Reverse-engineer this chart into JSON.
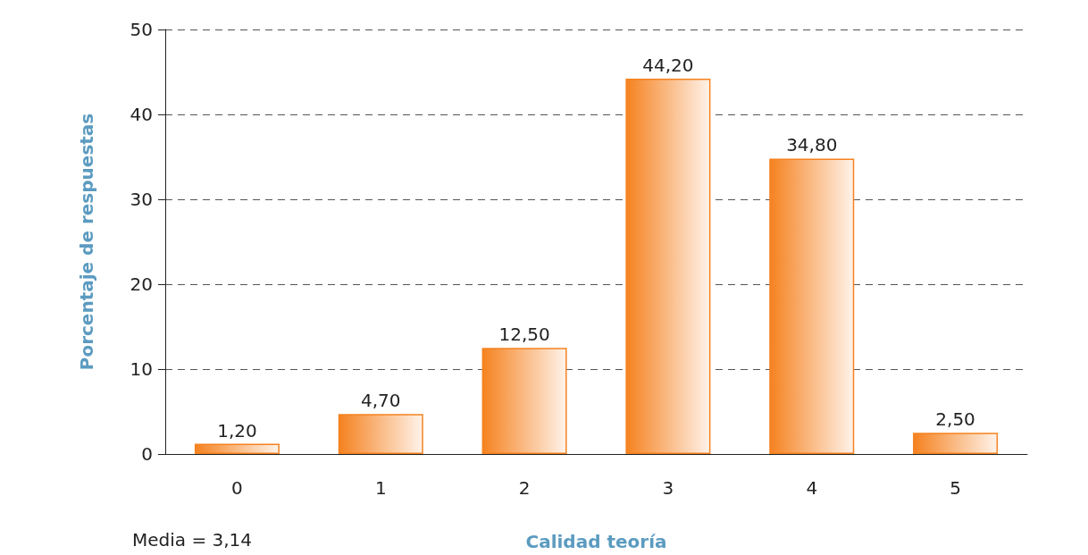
{
  "chart_data": {
    "type": "bar",
    "xlabel": "Calidad teoría",
    "ylabel": "Porcentaje de respuestas",
    "categories": [
      "0",
      "1",
      "2",
      "3",
      "4",
      "5"
    ],
    "values": [
      1.2,
      4.7,
      12.5,
      44.2,
      34.8,
      2.5
    ],
    "value_labels": [
      "1,20",
      "4,70",
      "12,50",
      "44,20",
      "34,80",
      "2,50"
    ],
    "color": "#f58220",
    "ylim": [
      0,
      50
    ],
    "yticks": [
      0,
      10,
      20,
      30,
      40,
      50
    ],
    "grid": "y",
    "annotations": [
      "Media = 3,14"
    ]
  }
}
